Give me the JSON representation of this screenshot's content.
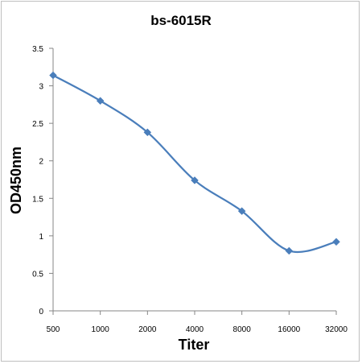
{
  "chart_data": {
    "type": "line",
    "title": "bs-6015R",
    "xlabel": "Titer",
    "ylabel": "OD450nm",
    "categories": [
      "500",
      "1000",
      "2000",
      "4000",
      "8000",
      "16000",
      "32000"
    ],
    "series": [
      {
        "values": [
          3.14,
          2.8,
          2.38,
          1.74,
          1.33,
          0.8,
          0.92
        ]
      }
    ],
    "ylim": [
      0,
      3.5
    ],
    "yticks": [
      "0",
      "0.5",
      "1",
      "1.5",
      "2",
      "2.5",
      "3",
      "3.5"
    ],
    "grid": false,
    "legend": "none",
    "series_color": "#4a7ebb"
  }
}
